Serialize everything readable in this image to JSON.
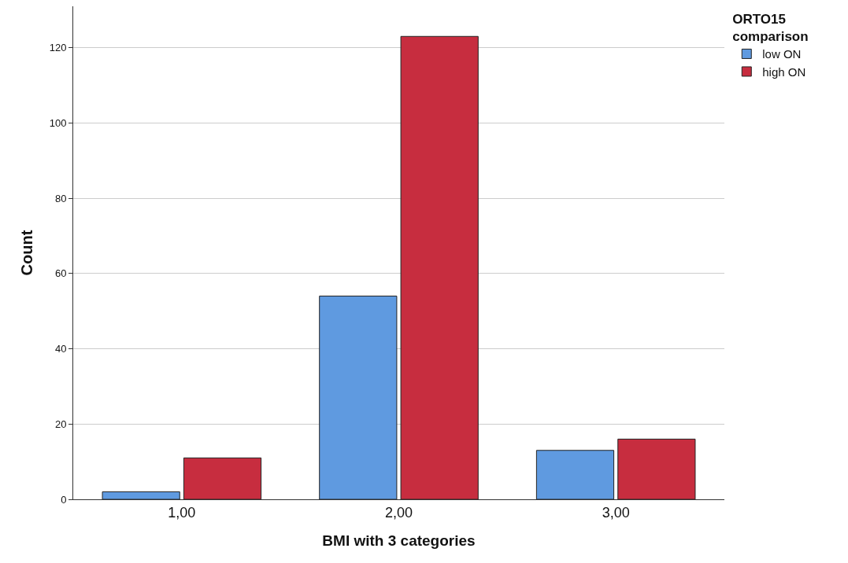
{
  "chart_data": {
    "type": "bar",
    "xlabel": "BMI with 3 categories",
    "ylabel": "Count",
    "legend_title": "ORTO15 comparison",
    "categories": [
      "1,00",
      "2,00",
      "3,00"
    ],
    "series": [
      {
        "name": "low ON",
        "color": "#5f9ae0",
        "values": [
          2,
          54,
          13
        ]
      },
      {
        "name": "high ON",
        "color": "#c72d3f",
        "values": [
          11,
          123,
          16
        ]
      }
    ],
    "ylim": [
      0,
      131
    ],
    "yticks": [
      0,
      20,
      40,
      60,
      80,
      100,
      120
    ],
    "grid": "y",
    "legend": "top right"
  }
}
